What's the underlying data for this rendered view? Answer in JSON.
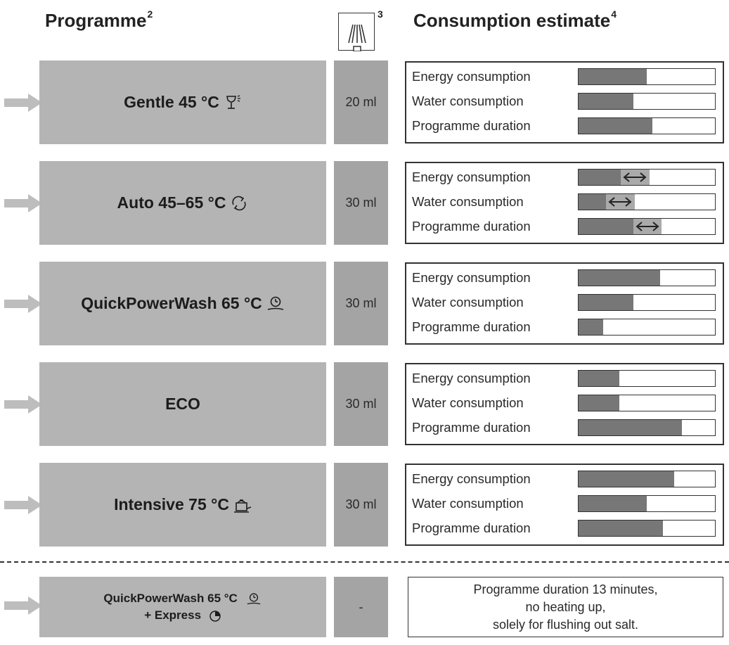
{
  "header": {
    "programme_label": "Programme",
    "programme_sup": "2",
    "rinse_aid_sup": "3",
    "consumption_label": "Consumption estimate",
    "consumption_sup": "4"
  },
  "rows": [
    {
      "name": "Gentle 45 °C",
      "icon": "wine-glass-icon",
      "dose": "20 ml",
      "metrics": [
        {
          "label": "Energy consumption",
          "level": 0.5
        },
        {
          "label": "Water consumption",
          "level": 0.4
        },
        {
          "label": "Programme duration",
          "level": 0.54
        }
      ]
    },
    {
      "name": "Auto 45–65 °C",
      "icon": "auto-cycle-icon",
      "dose": "30 ml",
      "metrics": [
        {
          "label": "Energy consumption",
          "level": 0.31,
          "range_to": 0.52
        },
        {
          "label": "Water consumption",
          "level": 0.2,
          "range_to": 0.41
        },
        {
          "label": "Programme duration",
          "level": 0.4,
          "range_to": 0.61
        }
      ]
    },
    {
      "name": "QuickPowerWash 65 °C",
      "icon": "quick-clock-icon",
      "dose": "30 ml",
      "metrics": [
        {
          "label": "Energy consumption",
          "level": 0.6
        },
        {
          "label": "Water consumption",
          "level": 0.4
        },
        {
          "label": "Programme duration",
          "level": 0.18
        }
      ]
    },
    {
      "name": "ECO",
      "icon": "",
      "dose": "30 ml",
      "metrics": [
        {
          "label": "Energy consumption",
          "level": 0.3
        },
        {
          "label": "Water consumption",
          "level": 0.3
        },
        {
          "label": "Programme duration",
          "level": 0.76
        }
      ]
    },
    {
      "name": "Intensive 75 °C",
      "icon": "pot-icon",
      "dose": "30 ml",
      "metrics": [
        {
          "label": "Energy consumption",
          "level": 0.7
        },
        {
          "label": "Water consumption",
          "level": 0.5
        },
        {
          "label": "Programme duration",
          "level": 0.62
        }
      ]
    }
  ],
  "express": {
    "line1": "QuickPowerWash 65 °C",
    "line2": "+ Express",
    "dose": "-",
    "note1": "Programme duration 13 minutes,",
    "note2": "no heating up,",
    "note3": "solely for flushing out salt."
  },
  "colors": {
    "programme_bg": "#b4b4b4",
    "dose_bg": "#a4a4a4",
    "bar_fill": "#777777",
    "range_fill": "#aaaaaa",
    "arrow": "#bdbdbd"
  }
}
